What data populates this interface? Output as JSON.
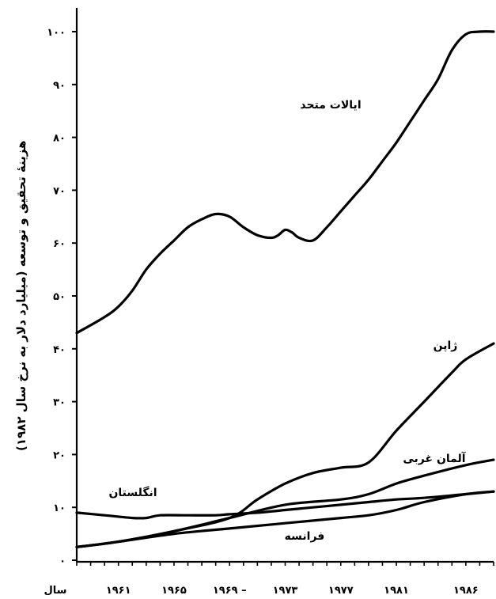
{
  "chart_data": {
    "type": "line",
    "ylabel": "هزینهٔ تحقیق و توسعه (میلیارد دلار به نرخ سال ۱۹۸۲)",
    "xlabel": "سال",
    "xlim": [
      1958,
      1988
    ],
    "ylim": [
      0,
      105
    ],
    "x_ticks": [
      1961,
      1965,
      1969,
      1973,
      1977,
      1981,
      1986
    ],
    "x_tick_labels": [
      "۱۹۶۱",
      "۱۹۶۵",
      "۱۹۶۹ –",
      "۱۹۷۳",
      "۱۹۷۷",
      "۱۹۸۱",
      "۱۹۸۶"
    ],
    "y_ticks": [
      0,
      10,
      20,
      30,
      40,
      50,
      60,
      70,
      80,
      90,
      100
    ],
    "y_tick_labels": [
      "۰",
      "۱۰",
      "۲۰",
      "۳۰",
      "۴۰",
      "۵۰",
      "۶۰",
      "۷۰",
      "۸۰",
      "۹۰",
      "۱۰۰"
    ],
    "grid": false,
    "series": [
      {
        "name": "ایالات متحد",
        "color": "#000000",
        "x": [
          1958,
          1960,
          1961,
          1962,
          1963,
          1964,
          1965,
          1966,
          1967,
          1968,
          1969,
          1970,
          1971,
          1972,
          1972.5,
          1973,
          1973.5,
          1974,
          1975,
          1976,
          1977,
          1978,
          1979,
          1980,
          1981,
          1982,
          1983,
          1984,
          1985,
          1986,
          1987,
          1988
        ],
        "y": [
          43,
          46,
          48,
          51,
          55,
          58,
          60.5,
          63,
          64.5,
          65.5,
          65,
          63,
          61.5,
          61,
          61.5,
          62.5,
          62,
          61,
          60.5,
          63,
          66,
          69,
          72,
          75.5,
          79,
          83,
          87,
          91,
          96.5,
          99.5,
          100,
          100
        ]
      },
      {
        "name": "ژاپن",
        "color": "#000000",
        "x": [
          1958,
          1961,
          1965,
          1969,
          1971,
          1973,
          1975,
          1977,
          1979,
          1981,
          1983,
          1985,
          1986,
          1988
        ],
        "y": [
          2.5,
          3.5,
          5.5,
          8,
          11.5,
          14.5,
          16.5,
          17.5,
          18.5,
          24.5,
          30,
          35.5,
          38,
          41
        ]
      },
      {
        "name": "آلمان غربی",
        "color": "#000000",
        "x": [
          1958,
          1961,
          1965,
          1969,
          1973,
          1977,
          1979,
          1981,
          1983,
          1986,
          1988
        ],
        "y": [
          2.5,
          3.5,
          5.5,
          8,
          10.5,
          11.5,
          12.5,
          14.5,
          16,
          18,
          19
        ]
      },
      {
        "name": "انگلستان",
        "color": "#000000",
        "x": [
          1958,
          1960,
          1962,
          1963,
          1964,
          1966,
          1968,
          1969,
          1971,
          1973,
          1975,
          1977,
          1979,
          1981,
          1983,
          1986,
          1988
        ],
        "y": [
          9,
          8.5,
          8,
          8,
          8.5,
          8.5,
          8.5,
          8.7,
          9,
          9.5,
          10,
          10.5,
          11,
          11.5,
          11.8,
          12.5,
          13
        ]
      },
      {
        "name": "فرانسه",
        "color": "#000000",
        "x": [
          1958,
          1961,
          1965,
          1969,
          1973,
          1977,
          1979,
          1981,
          1983,
          1986,
          1988
        ],
        "y": [
          2.5,
          3.5,
          5,
          6,
          7,
          8,
          8.5,
          9.5,
          11,
          12.5,
          13
        ]
      }
    ]
  }
}
